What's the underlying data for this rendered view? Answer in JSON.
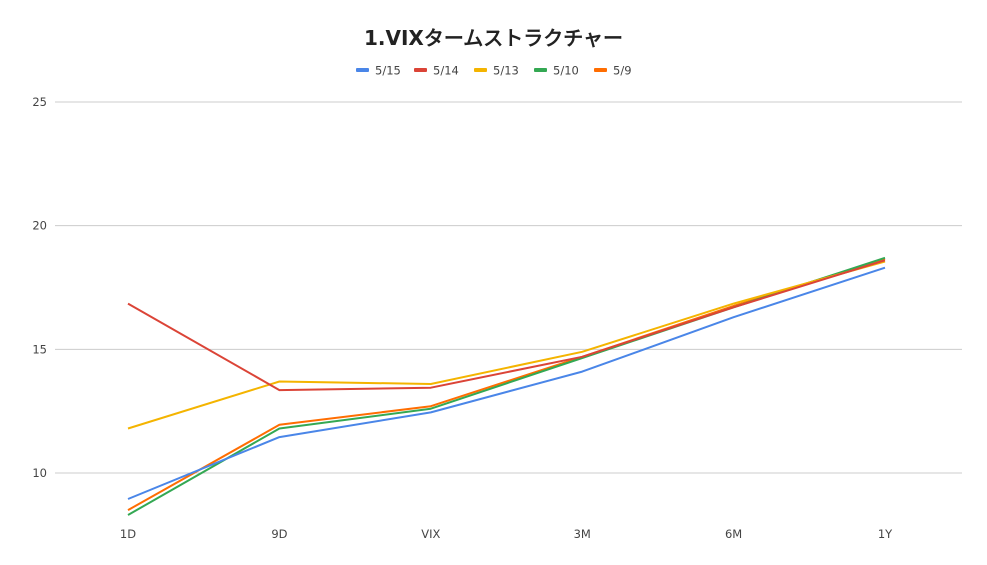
{
  "chart_data": {
    "type": "line",
    "title": "1.VIXタームストラクチャー",
    "xlabel": "",
    "ylabel": "",
    "categories": [
      "1D",
      "9D",
      "VIX",
      "3M",
      "6M",
      "1Y"
    ],
    "ylim": [
      8.5,
      25
    ],
    "yticks": [
      "10",
      "15",
      "20",
      "25"
    ],
    "legend_position": "top",
    "grid": true,
    "series": [
      {
        "name": "5/15",
        "color": "#4a86e8",
        "values": [
          8.95,
          11.45,
          12.45,
          14.1,
          16.3,
          18.3
        ]
      },
      {
        "name": "5/14",
        "color": "#db4437",
        "values": [
          16.85,
          13.35,
          13.45,
          14.7,
          16.7,
          18.6
        ]
      },
      {
        "name": "5/13",
        "color": "#f4b400",
        "values": [
          11.8,
          13.7,
          13.6,
          14.9,
          16.85,
          18.55
        ]
      },
      {
        "name": "5/10",
        "color": "#34a853",
        "values": [
          8.3,
          11.8,
          12.6,
          14.65,
          16.7,
          18.7
        ]
      },
      {
        "name": "5/9",
        "color": "#ff6d01",
        "values": [
          8.5,
          11.95,
          12.7,
          14.7,
          16.75,
          18.65
        ]
      }
    ]
  }
}
